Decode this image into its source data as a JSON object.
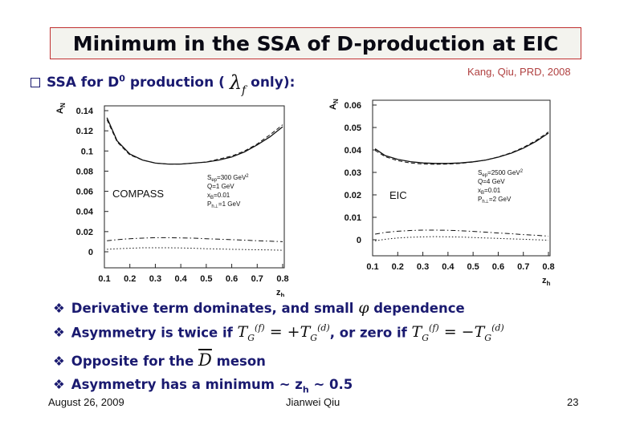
{
  "title": "Minimum in the SSA of D-production at EIC",
  "subhead": {
    "text_pre": "SSA for D",
    "sup": "0",
    "text_mid": " production (",
    "lambda": "λ",
    "lambda_sub": "f",
    "text_post": "only):"
  },
  "reference": "Kang, Qiu, PRD, 2008",
  "chart_data": [
    {
      "type": "line",
      "ylabel": "A",
      "ylabel_sub": "N",
      "xlabel": "z",
      "xlabel_sub": "h",
      "xlim": [
        0.1,
        0.8
      ],
      "ylim": [
        0,
        0.14
      ],
      "xticks": [
        "0.1",
        "0.2",
        "0.3",
        "0.4",
        "0.5",
        "0.6",
        "0.7",
        "0.8"
      ],
      "yticks": [
        "0",
        "0.02",
        "0.04",
        "0.06",
        "0.08",
        "0.1",
        "0.12",
        "0.14"
      ],
      "panel_label": "COMPASS",
      "params": [
        "S=300 GeV²",
        "Q=1 GeV",
        "x_B=0.01",
        "P_h⊥=1 GeV"
      ],
      "param_lines": [
        {
          "main": "S",
          "sub": "ep",
          "rest": "=300 GeV",
          "sup": "2"
        },
        {
          "main": "Q=1 GeV",
          "sub": "",
          "rest": "",
          "sup": ""
        },
        {
          "main": "x",
          "sub": "B",
          "rest": "=0.01",
          "sup": ""
        },
        {
          "main": "P",
          "sub": "h⊥",
          "rest": "=1 GeV",
          "sup": ""
        }
      ],
      "x": [
        0.11,
        0.15,
        0.2,
        0.25,
        0.3,
        0.35,
        0.4,
        0.45,
        0.5,
        0.55,
        0.6,
        0.65,
        0.7,
        0.75,
        0.8
      ],
      "series": [
        {
          "style": "solid",
          "values": [
            0.133,
            0.11,
            0.097,
            0.091,
            0.088,
            0.087,
            0.087,
            0.088,
            0.089,
            0.091,
            0.094,
            0.099,
            0.106,
            0.114,
            0.124
          ]
        },
        {
          "style": "dashed",
          "values": [
            0.131,
            0.109,
            0.096,
            0.091,
            0.088,
            0.087,
            0.087,
            0.088,
            0.089,
            0.092,
            0.095,
            0.1,
            0.107,
            0.116,
            0.126
          ]
        },
        {
          "style": "dashdot",
          "values": [
            0.011,
            0.012,
            0.013,
            0.0135,
            0.014,
            0.014,
            0.0138,
            0.0135,
            0.013,
            0.0125,
            0.012,
            0.0115,
            0.011,
            0.0105,
            0.01
          ]
        },
        {
          "style": "dotted",
          "values": [
            0.0025,
            0.003,
            0.0035,
            0.004,
            0.004,
            0.004,
            0.0038,
            0.0035,
            0.003,
            0.0028,
            0.0025,
            0.0022,
            0.002,
            0.0018,
            0.0015
          ]
        }
      ]
    },
    {
      "type": "line",
      "ylabel": "A",
      "ylabel_sub": "N",
      "xlabel": "z",
      "xlabel_sub": "h",
      "xlim": [
        0.1,
        0.8
      ],
      "ylim": [
        0,
        0.06
      ],
      "xticks": [
        "0.1",
        "0.2",
        "0.3",
        "0.4",
        "0.5",
        "0.6",
        "0.7",
        "0.8"
      ],
      "yticks": [
        "0",
        "0.01",
        "0.02",
        "0.03",
        "0.04",
        "0.05",
        "0.06"
      ],
      "panel_label": "EIC",
      "params": [
        "S=2500 GeV²",
        "Q=4 GeV",
        "x_B=0.01",
        "P_h⊥=2 GeV"
      ],
      "param_lines": [
        {
          "main": "S",
          "sub": "ep",
          "rest": "=2500 GeV",
          "sup": "2"
        },
        {
          "main": "Q=4 GeV",
          "sub": "",
          "rest": "",
          "sup": ""
        },
        {
          "main": "x",
          "sub": "B",
          "rest": "=0.01",
          "sup": ""
        },
        {
          "main": "P",
          "sub": "h⊥",
          "rest": "=2 GeV",
          "sup": ""
        }
      ],
      "x": [
        0.11,
        0.15,
        0.2,
        0.25,
        0.3,
        0.35,
        0.4,
        0.45,
        0.5,
        0.55,
        0.6,
        0.65,
        0.7,
        0.75,
        0.8
      ],
      "series": [
        {
          "style": "solid",
          "values": [
            0.0405,
            0.0375,
            0.0358,
            0.0348,
            0.0342,
            0.034,
            0.034,
            0.0342,
            0.0347,
            0.0355,
            0.0368,
            0.0385,
            0.0408,
            0.0438,
            0.0475
          ]
        },
        {
          "style": "dashed",
          "values": [
            0.0398,
            0.037,
            0.0352,
            0.0342,
            0.0337,
            0.0336,
            0.0337,
            0.034,
            0.0346,
            0.0355,
            0.0369,
            0.0387,
            0.0411,
            0.0442,
            0.048
          ]
        },
        {
          "style": "dashdot",
          "values": [
            0.0025,
            0.0033,
            0.0038,
            0.0041,
            0.0043,
            0.0043,
            0.0042,
            0.004,
            0.0037,
            0.0034,
            0.003,
            0.0027,
            0.0023,
            0.002,
            0.0016
          ]
        },
        {
          "style": "dotted",
          "values": [
            -0.0005,
            0.0002,
            0.0008,
            0.0011,
            0.0013,
            0.0014,
            0.0013,
            0.0012,
            0.001,
            0.0008,
            0.0006,
            0.0004,
            0.0002,
            0.0,
            -0.0002
          ]
        }
      ]
    }
  ],
  "bullets": {
    "b1": {
      "pre": "Derivative term dominates, and small ",
      "phi": "φ",
      "post": " dependence"
    },
    "b2": {
      "pre": "Asymmetry is twice if ",
      "m1": "T",
      "m1_sub": "G",
      "m1_sup": "(f)",
      "eq1": " = +",
      "m2": "T",
      "m2_sub": "G",
      "m2_sup": "(d)",
      "mid": ", or zero if ",
      "m3": "T",
      "m3_sub": "G",
      "m3_sup": "(f)",
      "eq2": " = −",
      "m4": "T",
      "m4_sub": "G",
      "m4_sup": "(d)"
    },
    "b3": {
      "pre": "Opposite for the ",
      "dbar": "D",
      "post": " meson"
    },
    "b4": {
      "pre": "Asymmetry has a minimum ~ z",
      "sub": "h",
      "post": " ~ 0.5"
    }
  },
  "footer": {
    "date": "August 26, 2009",
    "author": "Jianwei Qiu",
    "page": "23"
  }
}
